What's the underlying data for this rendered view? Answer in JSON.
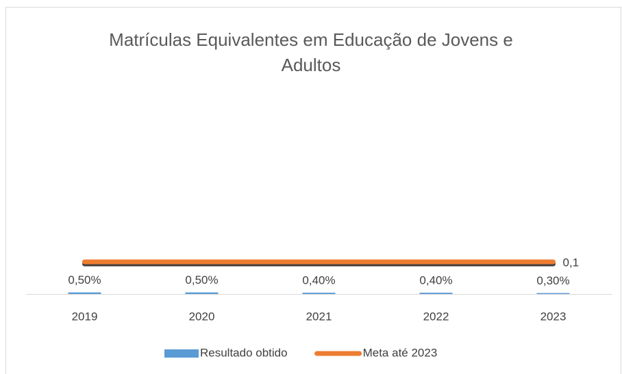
{
  "chart_data": {
    "type": "bar_line",
    "title": "Matrículas Equivalentes em Educação de Jovens e Adultos",
    "categories": [
      "2019",
      "2020",
      "2021",
      "2022",
      "2023"
    ],
    "series": [
      {
        "name": "Resultado obtido",
        "type": "bar",
        "color": "#5b9bd5",
        "values": [
          0.005,
          0.005,
          0.004,
          0.004,
          0.003
        ],
        "value_labels": [
          "0,50%",
          "0,50%",
          "0,40%",
          "0,40%",
          "0,30%"
        ]
      },
      {
        "name": "Meta até 2023",
        "type": "line",
        "color": "#ed7d31",
        "values": [
          0.1,
          0.1,
          0.1,
          0.1,
          0.1
        ],
        "value_labels": [
          null,
          null,
          null,
          null,
          "0,1"
        ]
      }
    ],
    "ylim": [
      0,
      0.6
    ],
    "legend": "bottom"
  }
}
